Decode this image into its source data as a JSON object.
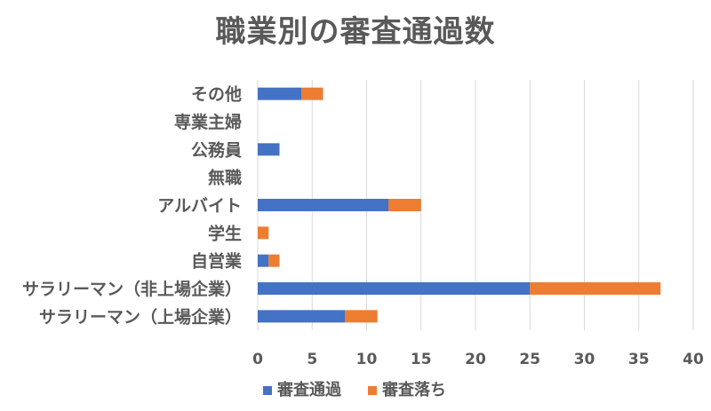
{
  "chart_data": {
    "type": "bar",
    "orientation": "horizontal",
    "stacked": true,
    "title": "職業別の審査通過数",
    "xlabel": "",
    "ylabel": "",
    "xlim": [
      0,
      40
    ],
    "ticks": [
      0,
      5,
      10,
      15,
      20,
      25,
      30,
      35,
      40
    ],
    "grid": true,
    "legend_position": "bottom",
    "categories": [
      "その他",
      "専業主婦",
      "公務員",
      "無職",
      "アルバイト",
      "学生",
      "自営業",
      "サラリーマン（非上場企業）",
      "サラリーマン（上場企業）"
    ],
    "series": [
      {
        "name": "審査通過",
        "color": "#4472C4",
        "values": [
          4,
          0,
          2,
          0,
          12,
          0,
          1,
          25,
          8
        ]
      },
      {
        "name": "審査落ち",
        "color": "#ED7D31",
        "values": [
          2,
          0,
          0,
          0,
          3,
          1,
          1,
          12,
          3
        ]
      }
    ]
  }
}
